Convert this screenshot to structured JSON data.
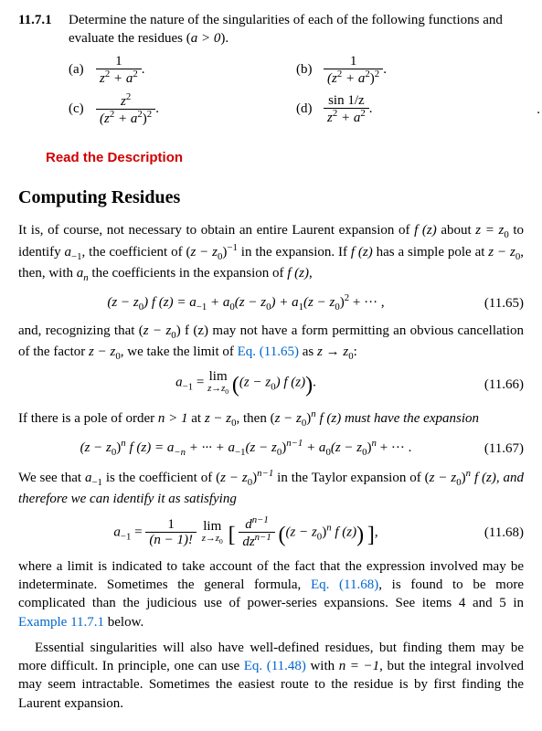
{
  "problem": {
    "number": "11.7.1",
    "text": "Determine the nature of the singularities of each of the following functions and evaluate the residues (",
    "cond": "a > 0",
    "text2": ").",
    "a": {
      "label": "(a)",
      "num": "1",
      "den_left": "z",
      "den_exp": "2",
      "den_mid": " + a",
      "den_exp2": "2",
      "tail": "."
    },
    "b": {
      "label": "(b)",
      "num": "1",
      "den_left": "(z",
      "den_exp": "2",
      "den_mid": " + a",
      "den_exp2": "2",
      "den_right": ")",
      "den_oexp": "2",
      "tail": "."
    },
    "c": {
      "label": "(c)",
      "num_left": "z",
      "num_exp": "2",
      "den_left": "(z",
      "den_exp": "2",
      "den_mid": " + a",
      "den_exp2": "2",
      "den_right": ")",
      "den_oexp": "2",
      "tail": "."
    },
    "d": {
      "label": "(d)",
      "num": "sin 1/z",
      "den_left": "z",
      "den_exp": "2",
      "den_mid": " + a",
      "den_exp2": "2",
      "tail": "."
    }
  },
  "instruction": "Read the Description",
  "section_title": "Computing Residues",
  "p1": {
    "t1": "It is, of course, not necessary to obtain an entire Laurent expansion of ",
    "f": "f (z)",
    "t2": " about ",
    "eq1": "z = z",
    "sub0": "0",
    "t3": " to identify ",
    "am1": "a",
    "am1s": "−1",
    "t4": ", the coefficient of (",
    "zz0": "z − z",
    "t5": ")",
    "exp": "−1",
    "t6": " in the expansion. If ",
    "t7": " has a simple pole at ",
    "t8": ", then, with ",
    "an": "a",
    "ans": "n",
    "t9": " the coefficients in the expansion of ",
    "t10": ","
  },
  "eq65": {
    "lhs_l": "(z − z",
    "lhs_r": ") f (z) = a",
    "s0": "0",
    "sm1": "−1",
    "r1": " + a",
    "r1s": "0",
    "r1t": "(z − z",
    "r2": ") + a",
    "r2s": "1",
    "r2t": "(z − z",
    "exp2": "2",
    "tail": " + ··· ,",
    "num": "(11.65)"
  },
  "p2": {
    "t1": "and, recognizing that (",
    "t2": ") f (z) may not have a form permitting an obvious cancellation of the factor ",
    "t3": ", we take the limit of ",
    "ref": "Eq. (11.65)",
    "t4": " as ",
    "lim": "z → z",
    "t5": ":"
  },
  "eq66": {
    "lhs": "a",
    "lhss": "−1",
    "eq": " = ",
    "lim": "lim",
    "under": "z→z",
    "u0": "0",
    "inner_l": "(z − z",
    "inner_r": ") f (z)",
    "tail": ".",
    "num": "(11.66)"
  },
  "p3": {
    "t1": "If there is a pole of order ",
    "n": "n > 1",
    "t2": " at ",
    "t3": ", then (",
    "t4": ")",
    "expn": "n",
    "t5": " f (z) must have the expansion"
  },
  "eq67": {
    "l1": "(z − z",
    "l2": ")",
    "ln": "n",
    "l3": " f (z) = a",
    "lns": "−n",
    "m1": " + ··· + a",
    "m1s": "−1",
    "m2": "(z − z",
    "m3": ")",
    "m3e": "n−1",
    "m4": " + a",
    "m4s": "0",
    "m5": "(z − z",
    "m6": ")",
    "m6e": "n",
    "tail": " + ··· .",
    "num": "(11.67)"
  },
  "p4": {
    "t1": "We see that ",
    "t2": " is the coefficient of (",
    "t3": ")",
    "exp": "n−1",
    "t4": " in the Taylor expansion of (",
    "t5": ")",
    "t6": " f (z), and therefore we can identify it as satisfying"
  },
  "eq68": {
    "lhs": "a",
    "lhss": "−1",
    "eq": " = ",
    "f1num": "1",
    "f1den_l": "(n − 1)!",
    "lim": "lim",
    "under": "z→z",
    "u0": "0",
    "f2num_l": "d",
    "f2num_e": "n−1",
    "f2den_l": "dz",
    "f2den_e": "n−1",
    "inner_l": "(z − z",
    "inner_e": "n",
    "inner_r": " f (z)",
    "tail": ",",
    "num": "(11.68)"
  },
  "p5": {
    "t1": "where a limit is indicated to take account of the fact that the expression involved may be indeterminate. Sometimes the general formula, ",
    "ref": "Eq. (11.68)",
    "t2": ", is found to be more complicated than the judicious use of power-series expansions. See items 4 and 5 in ",
    "ref2": "Example 11.7.1",
    "t3": " below."
  },
  "p6": {
    "t1": "Essential singularities will also have well-defined residues, but finding them may be more difficult. In principle, one can use ",
    "ref": "Eq. (11.48)",
    "t2": " with ",
    "n": "n = −1",
    "t3": ", but the integral involved may seem intractable. Sometimes the easiest route to the residue is by first finding the Laurent expansion."
  }
}
